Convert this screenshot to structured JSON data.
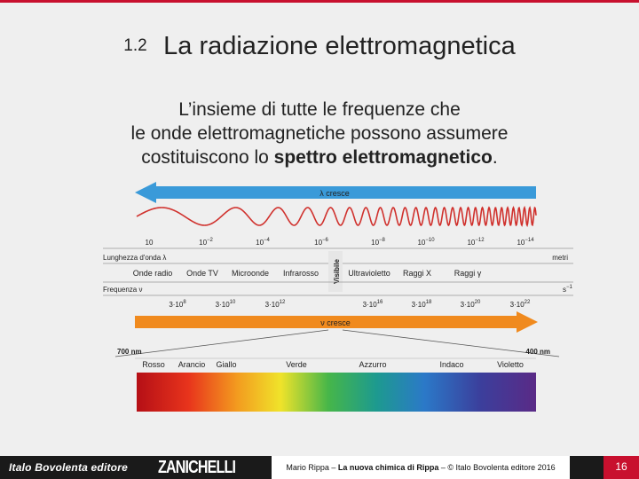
{
  "header": {
    "section_number": "1.2",
    "title": "La radiazione elettromagnetica"
  },
  "intro": {
    "line1": "L’insieme di tutte le frequenze che",
    "line2": "le onde elettromagnetiche possono assumere",
    "line3_prefix": "costituiscono lo ",
    "line3_bold": "spettro elettromagnetico",
    "line3_suffix": "."
  },
  "diagram": {
    "lambda_arrow_label": "λ cresce",
    "nu_arrow_label": "ν cresce",
    "wavelength_axis_title": "Lunghezza d'onda λ",
    "wavelength_unit": "metri",
    "wavelength_ticks": [
      {
        "base": "10",
        "exp": ""
      },
      {
        "base": "10",
        "exp": "−2"
      },
      {
        "base": "10",
        "exp": "−4"
      },
      {
        "base": "10",
        "exp": "−6"
      },
      {
        "base": "10",
        "exp": "−8"
      },
      {
        "base": "10",
        "exp": "−10"
      },
      {
        "base": "10",
        "exp": "−12"
      },
      {
        "base": "10",
        "exp": "−14"
      }
    ],
    "regions": [
      "Onde radio",
      "Onde TV",
      "Microonde",
      "Infrarosso",
      "Visibile",
      "Ultravioletto",
      "Raggi X",
      "Raggi γ"
    ],
    "frequency_axis_title": "Frequenza ν",
    "frequency_unit": "s",
    "frequency_unit_exp": "−1",
    "frequency_ticks": [
      {
        "base": "3·10",
        "exp": "8"
      },
      {
        "base": "3·10",
        "exp": "10"
      },
      {
        "base": "3·10",
        "exp": "12"
      },
      {
        "base": "3·10",
        "exp": "16"
      },
      {
        "base": "3·10",
        "exp": "18"
      },
      {
        "base": "3·10",
        "exp": "20"
      },
      {
        "base": "3·10",
        "exp": "22"
      }
    ],
    "visible_left_nm": "700 nm",
    "visible_right_nm": "400 nm",
    "colors": [
      "Rosso",
      "Arancio",
      "Giallo",
      "Verde",
      "Azzurro",
      "Indaco",
      "Violetto"
    ],
    "arrow_color_blue": "#3a9ad9",
    "arrow_color_orange": "#f08a1e",
    "wave_color": "#d0312d"
  },
  "footer": {
    "publisher": "Italo Bovolenta editore",
    "brand": "ZANICHELLI",
    "credit_author": "Mario Rippa –",
    "credit_book": "La nuova chimica di Rippa",
    "credit_rest": "– © Italo Bovolenta editore 2016",
    "page_number": "16"
  }
}
